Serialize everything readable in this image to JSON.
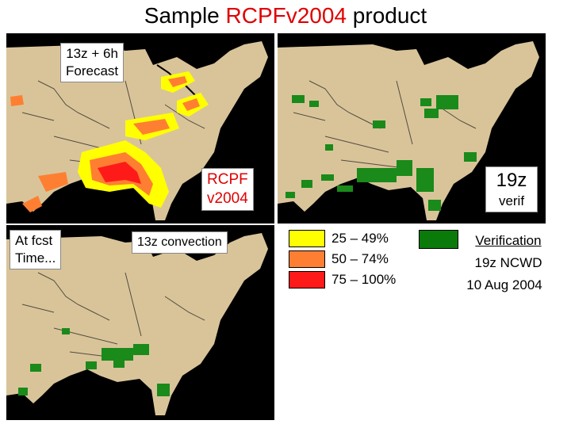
{
  "title": {
    "prefix": "Sample ",
    "highlight": "RCPFv2004",
    "suffix": " product"
  },
  "forecast_map": {
    "label_line1": "13z + 6h",
    "label_line2": "Forecast",
    "product_line1": "RCPF",
    "product_line2": "v2004"
  },
  "verif_map": {
    "time": "19z",
    "word": "verif"
  },
  "current_map": {
    "label_line1": "At fcst",
    "label_line2": "Time...",
    "caption": "13z convection"
  },
  "legend": {
    "items": [
      {
        "label": "25 – 49%",
        "color": "#ffff00"
      },
      {
        "label": "50 – 74%",
        "color": "#ff7f32"
      },
      {
        "label": "75 – 100%",
        "color": "#ff1a1a"
      }
    ]
  },
  "verification_key": {
    "color": "#0a7a0a",
    "title": "Verification",
    "line2": "19z NCWD",
    "line3": "10 Aug 2004"
  },
  "colors": {
    "land": "#d9c49a",
    "water": "#000000",
    "border": "#1a1a1a",
    "convection": "#1a8a1a"
  }
}
